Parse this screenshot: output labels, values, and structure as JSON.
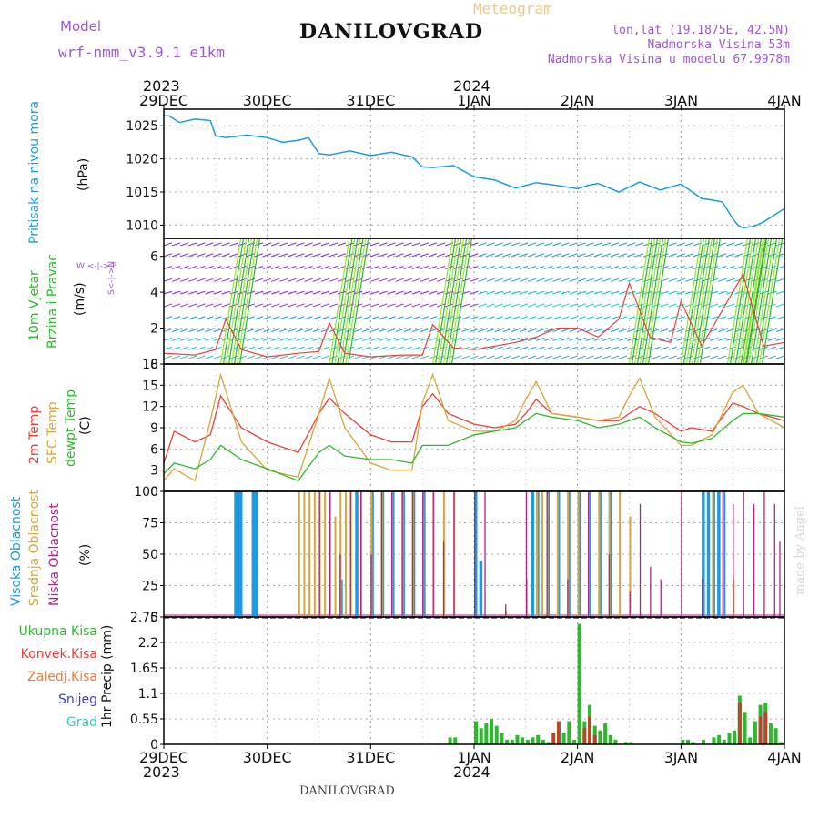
{
  "header": {
    "model_label": "Model",
    "model_name": "wrf-nmm_v3.9.1 e1km",
    "title": "DANILOVGRAD",
    "meteogram": "Meteogram",
    "lonlat": "lon,lat (19.1875E, 42.5N)",
    "altitude": "Nadmorska Visina 53m",
    "model_altitude": "Nadmorska Visina u modelu 67.9978m"
  },
  "footer": {
    "station": "DANILOVGRAD",
    "watermark": "made by Angel"
  },
  "time_axis": {
    "top_year_left": "2023",
    "top_year_mid": "2024",
    "bottom_year_left": "2023",
    "bottom_year_mid": "2024",
    "labels": [
      "29DEC",
      "30DEC",
      "31DEC",
      "1JAN",
      "2JAN",
      "3JAN",
      "4JAN"
    ]
  },
  "colors": {
    "pressure": "#1e9be0",
    "temp2m": "#e8413a",
    "sfc": "#d9a53a",
    "dewpt": "#2eb82e",
    "high_cloud": "#1e9be0",
    "mid_cloud": "#d9a53a",
    "low_cloud": "#b0228a",
    "precip_total": "#2eb82e",
    "precip_conv": "#b04a2a",
    "wind_purple": "#8a2be2"
  },
  "panels": {
    "pressure": {
      "label": "Pritisak na nivou mora",
      "unit": "(hPa)"
    },
    "wind": {
      "label1": "10m Vjetar",
      "label2": "Brzina i Pravac",
      "unit": "(m/s)",
      "compass": "W <-|-> E",
      "ns": "S<-|->N"
    },
    "temp": {
      "label1": "2m Temp",
      "label2": "SFC Temp",
      "label3": "dewpt Temp",
      "unit": "(C)"
    },
    "cloud": {
      "label1": "Visoka Oblacnost",
      "label2": "Srednja Oblacnost",
      "label3": "Niska Oblacnost",
      "unit": "(%)"
    },
    "precip": {
      "label1": "Ukupna Kisa",
      "label2": "Konvek.Kisa",
      "label3": "Zaledj.Kisa",
      "label4": "Snijeg",
      "label5": "Grad",
      "unit": "1hr Precip (mm)"
    }
  },
  "chart_data": [
    {
      "type": "line",
      "title": "",
      "ylabel": "(hPa)",
      "ylim": [
        1008,
        1027.5
      ],
      "yticks": [
        1010,
        1015,
        1020,
        1025
      ],
      "x_days": [
        0,
        0.05,
        0.15,
        0.3,
        0.45,
        0.5,
        0.6,
        0.8,
        1.0,
        1.15,
        1.3,
        1.4,
        1.5,
        1.6,
        1.8,
        2.0,
        2.2,
        2.4,
        2.5,
        2.6,
        2.8,
        3.0,
        3.2,
        3.4,
        3.6,
        3.8,
        4.0,
        4.1,
        4.2,
        4.4,
        4.6,
        4.8,
        5.0,
        5.2,
        5.3,
        5.4,
        5.5,
        5.55,
        5.6,
        5.7,
        5.8,
        6.0
      ],
      "series": [
        {
          "values": [
            1026.5,
            1026.5,
            1025.5,
            1026.0,
            1025.8,
            1023.5,
            1023.2,
            1023.6,
            1023.2,
            1022.5,
            1022.8,
            1023.2,
            1020.8,
            1020.6,
            1021.2,
            1020.5,
            1021.0,
            1020.3,
            1018.8,
            1018.7,
            1019.0,
            1017.3,
            1016.8,
            1015.6,
            1016.4,
            1016.0,
            1015.5,
            1016.0,
            1016.3,
            1015.0,
            1016.5,
            1015.3,
            1016.2,
            1014.0,
            1013.8,
            1013.5,
            1011.0,
            1010.0,
            1009.6,
            1009.8,
            1010.5,
            1012.5
          ]
        }
      ]
    },
    {
      "type": "line",
      "title": "",
      "ylabel": "(m/s)",
      "ylim": [
        0,
        7
      ],
      "yticks": [
        0,
        2,
        4,
        6
      ],
      "x_days": [
        0,
        0.3,
        0.5,
        0.6,
        0.75,
        1.0,
        1.3,
        1.5,
        1.6,
        1.75,
        2.0,
        2.3,
        2.5,
        2.6,
        2.8,
        3.0,
        3.2,
        3.4,
        3.6,
        3.8,
        4.0,
        4.2,
        4.4,
        4.5,
        4.7,
        4.9,
        5.0,
        5.2,
        5.4,
        5.6,
        5.8,
        6.0
      ],
      "series": [
        {
          "values": [
            0.6,
            0.5,
            0.8,
            2.5,
            0.8,
            0.4,
            0.6,
            0.7,
            2.3,
            0.6,
            0.4,
            0.5,
            0.5,
            2.2,
            0.9,
            0.8,
            1.0,
            1.2,
            1.5,
            2.0,
            2.0,
            1.5,
            2.5,
            4.5,
            1.5,
            1.2,
            3.5,
            1.0,
            3.0,
            5.0,
            1.0,
            1.2
          ]
        }
      ]
    },
    {
      "type": "line",
      "title": "",
      "ylabel": "(C)",
      "ylim": [
        0,
        18
      ],
      "yticks": [
        0,
        3,
        6,
        9,
        12,
        15,
        18
      ],
      "x_days": [
        0,
        0.1,
        0.3,
        0.45,
        0.55,
        0.75,
        1.0,
        1.3,
        1.5,
        1.6,
        1.75,
        2.0,
        2.2,
        2.4,
        2.5,
        2.6,
        2.75,
        3.0,
        3.2,
        3.4,
        3.5,
        3.6,
        3.75,
        4.0,
        4.2,
        4.4,
        4.5,
        4.6,
        4.75,
        5.0,
        5.1,
        5.3,
        5.5,
        5.6,
        5.75,
        6.0
      ],
      "series": [
        {
          "name": "2m Temp",
          "values": [
            4,
            8.5,
            7,
            8,
            13.5,
            9,
            7,
            5.5,
            11,
            13.2,
            11,
            8,
            7,
            7,
            12,
            13.8,
            11,
            9.5,
            9,
            9.5,
            11,
            13,
            11,
            10.5,
            10,
            10,
            11,
            12,
            11,
            8.5,
            9,
            8.5,
            12.5,
            12,
            11,
            10
          ]
        },
        {
          "name": "SFC Temp",
          "values": [
            1.5,
            3.2,
            1.5,
            10,
            16.5,
            7,
            3,
            2,
            11,
            16,
            9,
            4,
            3,
            3,
            12.5,
            16.5,
            10,
            8.5,
            8.5,
            10,
            13,
            15.5,
            11,
            10.5,
            10,
            10.5,
            13.5,
            16,
            10.5,
            6.5,
            6.5,
            8,
            14,
            15,
            11,
            9
          ]
        },
        {
          "name": "dewpt Temp",
          "values": [
            2.5,
            4,
            3.2,
            4.5,
            6.5,
            4.5,
            3.2,
            1.5,
            5.5,
            6.5,
            5,
            4.5,
            4.5,
            4,
            6.5,
            6.5,
            6.5,
            8,
            8.5,
            9,
            10,
            11,
            10.5,
            10,
            9,
            9.5,
            10,
            10.5,
            9,
            7,
            6.8,
            7.5,
            10,
            11,
            11,
            10.5
          ]
        }
      ]
    },
    {
      "type": "bar",
      "title": "",
      "ylabel": "(%)",
      "ylim": [
        0,
        100
      ],
      "yticks": [
        0,
        25,
        50,
        75,
        100
      ],
      "series": [
        {
          "name": "Visoka Oblacnost",
          "x_days": [
            0.68,
            0.7,
            0.73,
            0.85,
            0.88,
            1.7,
            1.85,
            2.0,
            2.1,
            2.2,
            2.3,
            2.4,
            2.5,
            3.0,
            3.05,
            3.55,
            3.6,
            3.7,
            3.8,
            3.9,
            4.0,
            4.1,
            4.2,
            4.3,
            5.2,
            5.25,
            5.3,
            5.35,
            5.4
          ],
          "values": [
            100,
            100,
            100,
            100,
            100,
            30,
            100,
            100,
            100,
            100,
            100,
            100,
            100,
            100,
            45,
            100,
            100,
            100,
            100,
            100,
            100,
            100,
            100,
            100,
            100,
            100,
            100,
            100,
            100
          ]
        },
        {
          "name": "Srednja Oblacnost",
          "x_days": [
            1.3,
            1.35,
            1.4,
            1.45,
            1.5,
            1.55,
            1.6,
            1.65,
            1.7,
            1.75,
            1.8,
            1.9,
            2.0,
            2.1,
            2.2,
            2.3,
            2.4,
            2.5,
            2.6,
            2.7,
            2.8,
            3.3,
            3.5,
            3.6,
            3.65,
            3.7,
            3.8,
            3.9,
            4.0,
            4.1,
            4.2,
            4.3,
            4.4,
            4.5,
            5.3,
            5.4,
            5.5
          ],
          "values": [
            100,
            100,
            100,
            100,
            100,
            100,
            100,
            80,
            100,
            100,
            100,
            100,
            100,
            100,
            100,
            100,
            100,
            100,
            100,
            100,
            100,
            5,
            30,
            100,
            100,
            100,
            100,
            100,
            100,
            100,
            100,
            100,
            100,
            80,
            100,
            100,
            30
          ]
        },
        {
          "name": "Niska Oblacnost",
          "x_days": [
            1.5,
            1.6,
            1.7,
            1.8,
            1.9,
            2.0,
            2.1,
            2.2,
            2.3,
            2.4,
            2.5,
            2.6,
            2.7,
            2.8,
            3.0,
            3.1,
            3.3,
            3.5,
            3.7,
            3.9,
            4.1,
            4.3,
            4.5,
            4.6,
            4.7,
            4.8,
            5.0,
            5.2,
            5.4,
            5.5,
            5.6,
            5.7,
            5.8,
            5.9,
            5.95
          ],
          "values": [
            100,
            100,
            50,
            100,
            100,
            50,
            100,
            100,
            100,
            100,
            100,
            100,
            60,
            100,
            100,
            100,
            10,
            100,
            100,
            30,
            100,
            50,
            20,
            90,
            40,
            30,
            100,
            30,
            100,
            90,
            100,
            90,
            100,
            90,
            60
          ]
        }
      ]
    },
    {
      "type": "bar",
      "title": "",
      "ylabel": "1hr Precip (mm)",
      "ylim": [
        0,
        2.75
      ],
      "yticks": [
        0,
        0.55,
        1.1,
        1.65,
        2.2,
        2.75
      ],
      "series": [
        {
          "name": "Ukupna Kisa",
          "x_days": [
            2.75,
            2.8,
            3.0,
            3.05,
            3.1,
            3.15,
            3.2,
            3.25,
            3.3,
            3.35,
            3.4,
            3.45,
            3.5,
            3.55,
            3.6,
            3.65,
            3.7,
            3.85,
            3.9,
            3.95,
            4.0,
            4.05,
            4.1,
            4.15,
            4.2,
            4.25,
            4.3,
            4.35,
            4.45,
            4.5,
            5.0,
            5.05,
            5.1,
            5.2,
            5.3,
            5.35,
            5.4,
            5.45,
            5.5,
            5.55,
            5.6,
            5.65,
            5.7,
            5.75,
            5.8,
            5.85,
            5.9,
            5.95
          ],
          "values": [
            0.15,
            0.15,
            0.5,
            0.35,
            0.45,
            0.55,
            0.4,
            0.25,
            0.1,
            0.1,
            0.2,
            0.15,
            0.1,
            0.15,
            0.2,
            0.1,
            0.05,
            0.25,
            0.5,
            0.1,
            2.6,
            0.5,
            0.85,
            0.4,
            0.3,
            0.45,
            0.2,
            0.1,
            0.05,
            0.05,
            0.1,
            0.1,
            0.05,
            0.1,
            0.15,
            0.2,
            0.1,
            0.25,
            0.3,
            1.05,
            0.7,
            0.15,
            0.5,
            0.85,
            0.9,
            0.45,
            0.35,
            0.05
          ]
        },
        {
          "name": "Konvek.Kisa",
          "x_days": [
            3.75,
            3.8,
            4.05,
            4.1,
            4.15,
            5.55,
            5.75,
            5.8
          ],
          "values": [
            0.25,
            0.5,
            0.35,
            0.6,
            0.2,
            0.9,
            0.6,
            0.7
          ]
        }
      ]
    }
  ]
}
